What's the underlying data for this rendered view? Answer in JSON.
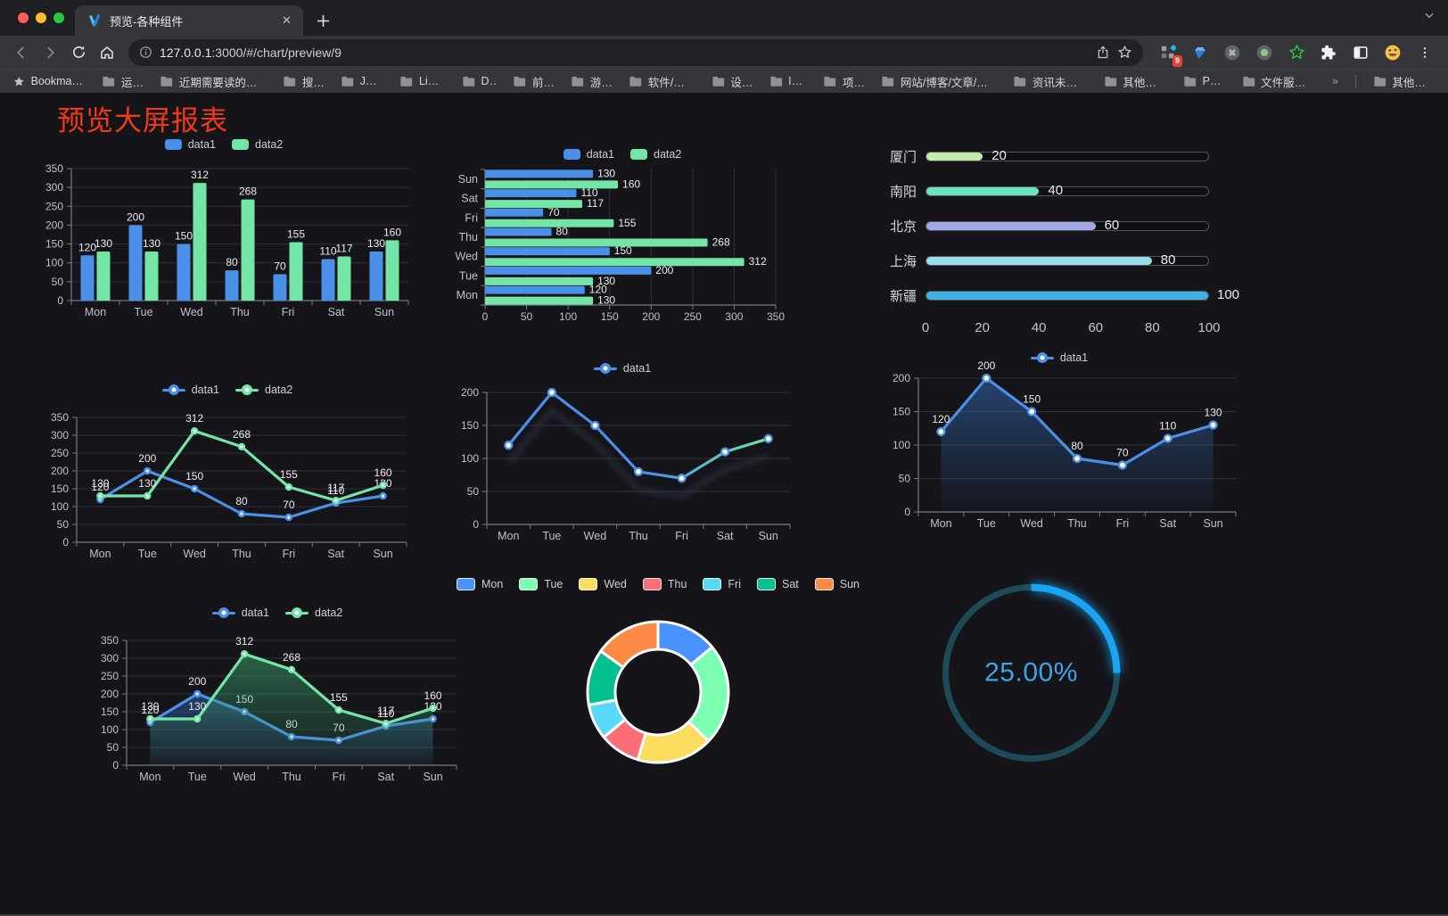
{
  "browser": {
    "tab_title": "预览-各种组件",
    "url_host": "127.0.0.1",
    "url_rest": ":3000/#/chart/preview/9",
    "extension_badge": "9",
    "bookmarks_label": "Bookmarks",
    "bookmarks": [
      "运营",
      "近期需要读的文章",
      "搜索",
      "Java",
      "Linux",
      "DB",
      "前端",
      "游戏",
      "软件/硬件",
      "设计",
      "IDE",
      "项目",
      "网站/博客/文章/工具",
      "资讯未整理",
      "其他语言",
      "PHP",
      "文件服务器"
    ],
    "bookmarks_overflow": "»",
    "other_bookmarks": "其他书签"
  },
  "page": {
    "title": "预览大屏报表",
    "title_color": "#f23a13",
    "background": "#141419"
  },
  "chart_data": [
    {
      "id": "grouped-bar",
      "type": "bar",
      "orientation": "vertical",
      "categories": [
        "Mon",
        "Tue",
        "Wed",
        "Thu",
        "Fri",
        "Sat",
        "Sun"
      ],
      "series": [
        {
          "name": "data1",
          "color": "#4b90e8",
          "values": [
            120,
            200,
            150,
            80,
            70,
            110,
            130
          ]
        },
        {
          "name": "data2",
          "color": "#73e6a7",
          "values": [
            130,
            130,
            312,
            268,
            155,
            117,
            160
          ]
        }
      ],
      "ylim": [
        0,
        350
      ],
      "ytick": 50,
      "show_labels": true,
      "legend_position": "top",
      "grid": true
    },
    {
      "id": "horizontal-bar",
      "type": "bar",
      "orientation": "horizontal",
      "categories": [
        "Mon",
        "Tue",
        "Wed",
        "Thu",
        "Fri",
        "Sat",
        "Sun"
      ],
      "series": [
        {
          "name": "data1",
          "color": "#4b90e8",
          "values": [
            120,
            200,
            150,
            80,
            70,
            110,
            130
          ]
        },
        {
          "name": "data2",
          "color": "#73e6a7",
          "values": [
            130,
            130,
            312,
            268,
            155,
            117,
            160
          ]
        }
      ],
      "xlim": [
        0,
        350
      ],
      "xtick": 50,
      "show_labels": true,
      "legend_position": "top",
      "grid": true
    },
    {
      "id": "progress-bars",
      "type": "progress",
      "max": 100,
      "axis_ticks": [
        0,
        20,
        40,
        60,
        80,
        100
      ],
      "items": [
        {
          "label": "厦门",
          "value": 20,
          "color": "#c4ebad"
        },
        {
          "label": "南阳",
          "value": 40,
          "color": "#6be6c1"
        },
        {
          "label": "北京",
          "value": 60,
          "color": "#a0a7e6"
        },
        {
          "label": "上海",
          "value": 80,
          "color": "#96dee8"
        },
        {
          "label": "新疆",
          "value": 100,
          "color": "#3fb1e3"
        }
      ]
    },
    {
      "id": "line-two-series",
      "type": "line",
      "categories": [
        "Mon",
        "Tue",
        "Wed",
        "Thu",
        "Fri",
        "Sat",
        "Sun"
      ],
      "series": [
        {
          "name": "data1",
          "color": "#4b90e8",
          "values": [
            120,
            200,
            150,
            80,
            70,
            110,
            130
          ]
        },
        {
          "name": "data2",
          "color": "#73e6a7",
          "values": [
            130,
            130,
            312,
            268,
            155,
            117,
            160
          ]
        }
      ],
      "ylim": [
        0,
        350
      ],
      "ytick": 50,
      "show_labels": true,
      "legend_position": "top",
      "grid": true
    },
    {
      "id": "line-gradient",
      "type": "line",
      "categories": [
        "Mon",
        "Tue",
        "Wed",
        "Thu",
        "Fri",
        "Sat",
        "Sun"
      ],
      "series": [
        {
          "name": "data1",
          "color": "#4b90e8",
          "gradient_to": "#6fe3a3",
          "marker": "hollow",
          "values": [
            120,
            200,
            150,
            80,
            70,
            110,
            130
          ]
        }
      ],
      "ylim": [
        0,
        200
      ],
      "ytick": 50,
      "show_labels": false,
      "shadow": true,
      "legend_position": "top",
      "grid": true
    },
    {
      "id": "line-area",
      "type": "line",
      "categories": [
        "Mon",
        "Tue",
        "Wed",
        "Thu",
        "Fri",
        "Sat",
        "Sun"
      ],
      "series": [
        {
          "name": "data1",
          "color": "#4b90e8",
          "marker": "hollow",
          "area_from": "rgba(52,106,180,0.55)",
          "area_to": "rgba(52,106,180,0.03)",
          "values": [
            120,
            200,
            150,
            80,
            70,
            110,
            130
          ]
        }
      ],
      "ylim": [
        0,
        200
      ],
      "ytick": 50,
      "show_labels": true,
      "legend_position": "top",
      "grid": true
    },
    {
      "id": "line-area-two-series",
      "type": "line",
      "categories": [
        "Mon",
        "Tue",
        "Wed",
        "Thu",
        "Fri",
        "Sat",
        "Sun"
      ],
      "series": [
        {
          "name": "data1",
          "color": "#4b90e8",
          "area_from": "rgba(52,106,180,0.50)",
          "area_to": "rgba(52,106,180,0.04)",
          "values": [
            120,
            200,
            150,
            80,
            70,
            110,
            130
          ]
        },
        {
          "name": "data2",
          "color": "#73e6a7",
          "area_from": "rgba(58,160,110,0.55)",
          "area_to": "rgba(58,160,110,0.05)",
          "values": [
            130,
            130,
            312,
            268,
            155,
            117,
            160
          ]
        }
      ],
      "ylim": [
        0,
        350
      ],
      "ytick": 50,
      "show_labels": true,
      "legend_position": "top",
      "grid": true
    },
    {
      "id": "donut",
      "type": "pie",
      "labels": [
        "Mon",
        "Tue",
        "Wed",
        "Thu",
        "Fri",
        "Sat",
        "Sun"
      ],
      "values": [
        120,
        200,
        150,
        80,
        70,
        110,
        130
      ],
      "colors": [
        "#4992ff",
        "#7cffb2",
        "#fddd60",
        "#ff6e76",
        "#58d9f9",
        "#05c091",
        "#ff8a45"
      ],
      "border_color": "#ffffff",
      "inner_radius": 48,
      "outer_radius": 79,
      "legend_position": "top"
    },
    {
      "id": "gauge",
      "type": "gauge",
      "percent": 25,
      "label": "25.00%",
      "color": "#18a4f0",
      "track_color": "#1d4a56",
      "text_color": "#3ea4e9"
    }
  ]
}
